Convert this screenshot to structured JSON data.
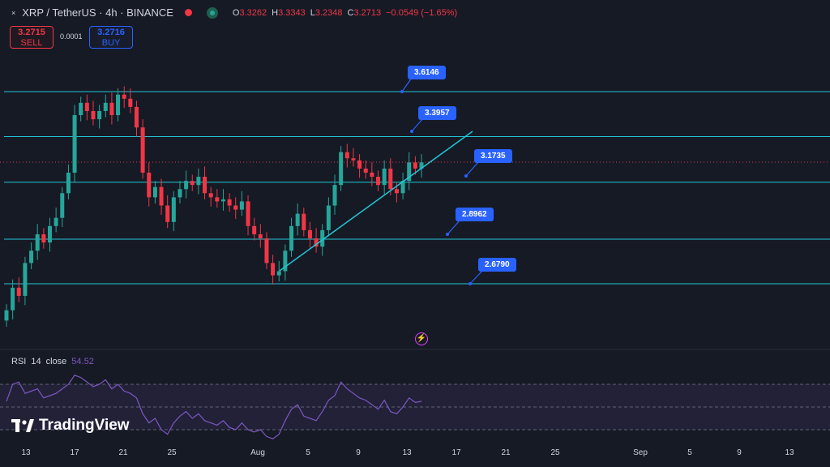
{
  "header": {
    "close_glyph": "×",
    "title": "XRP / TetherUS · 4h · BINANCE",
    "ohlc": {
      "open_label": "O",
      "open": "3.3262",
      "high_label": "H",
      "high": "3.3343",
      "low_label": "L",
      "low": "3.2348",
      "close_label": "C",
      "close": "3.2713",
      "change": "−0.0549 (−1.65%)"
    }
  },
  "trade": {
    "sell_price": "3.2715",
    "sell_label": "SELL",
    "spread": "0.0001",
    "buy_price": "3.2716",
    "buy_label": "BUY"
  },
  "chart_data": {
    "type": "candlestick",
    "symbol": "XRP / TetherUS",
    "interval": "4h",
    "exchange": "BINANCE",
    "colors": {
      "up": "#26a69a",
      "down": "#f23645",
      "level": "#22c7d6",
      "trendline": "#22c7d6",
      "callout": "#2962ff",
      "rsi": "#7e57c2"
    },
    "y_range": [
      2.4,
      3.85
    ],
    "current_price": 3.2713,
    "levels": [
      3.6146,
      3.3957,
      3.1735,
      2.8962,
      2.679
    ],
    "level_labels": [
      "3.6146",
      "3.3957",
      "3.1735",
      "2.8962",
      "2.6790"
    ],
    "trendline": {
      "from": {
        "date": "Aug 2",
        "price": 2.7
      },
      "to": {
        "date": "Aug 18",
        "price": 3.33
      }
    },
    "x_ticks": [
      "13",
      "17",
      "21",
      "25",
      "Aug",
      "5",
      "9",
      "13",
      "17",
      "21",
      "25",
      "Sep",
      "5",
      "9",
      "13"
    ],
    "closes": [
      2.55,
      2.66,
      2.62,
      2.78,
      2.84,
      2.92,
      2.88,
      2.96,
      3.0,
      3.12,
      3.22,
      3.5,
      3.56,
      3.52,
      3.48,
      3.52,
      3.56,
      3.5,
      3.6,
      3.58,
      3.54,
      3.44,
      3.22,
      3.1,
      3.15,
      3.06,
      2.98,
      3.1,
      3.14,
      3.18,
      3.16,
      3.2,
      3.12,
      3.1,
      3.08,
      3.09,
      3.06,
      3.04,
      3.08,
      2.96,
      2.92,
      2.9,
      2.78,
      2.72,
      2.74,
      2.84,
      2.96,
      3.02,
      2.94,
      2.9,
      2.86,
      2.94,
      3.06,
      3.16,
      3.32,
      3.29,
      3.28,
      3.24,
      3.22,
      3.2,
      3.16,
      3.24,
      3.14,
      3.12,
      3.18,
      3.27,
      3.24,
      3.27
    ],
    "rsi": {
      "label": "RSI",
      "length": "14",
      "source": "close",
      "value": "54.52",
      "bands": [
        70,
        50,
        30
      ],
      "values": [
        55,
        70,
        72,
        62,
        64,
        66,
        58,
        60,
        62,
        66,
        70,
        78,
        76,
        72,
        68,
        70,
        74,
        66,
        70,
        64,
        62,
        58,
        44,
        36,
        40,
        30,
        26,
        36,
        42,
        46,
        40,
        44,
        38,
        36,
        34,
        38,
        32,
        30,
        36,
        30,
        28,
        30,
        24,
        22,
        26,
        38,
        48,
        52,
        42,
        40,
        38,
        46,
        56,
        60,
        72,
        66,
        62,
        58,
        56,
        52,
        48,
        56,
        46,
        44,
        50,
        58,
        54,
        55
      ]
    }
  },
  "callouts": [
    "3.6146",
    "3.3957",
    "3.1735",
    "2.8962",
    "2.6790"
  ],
  "brand": {
    "logo_text": "TradingView"
  }
}
